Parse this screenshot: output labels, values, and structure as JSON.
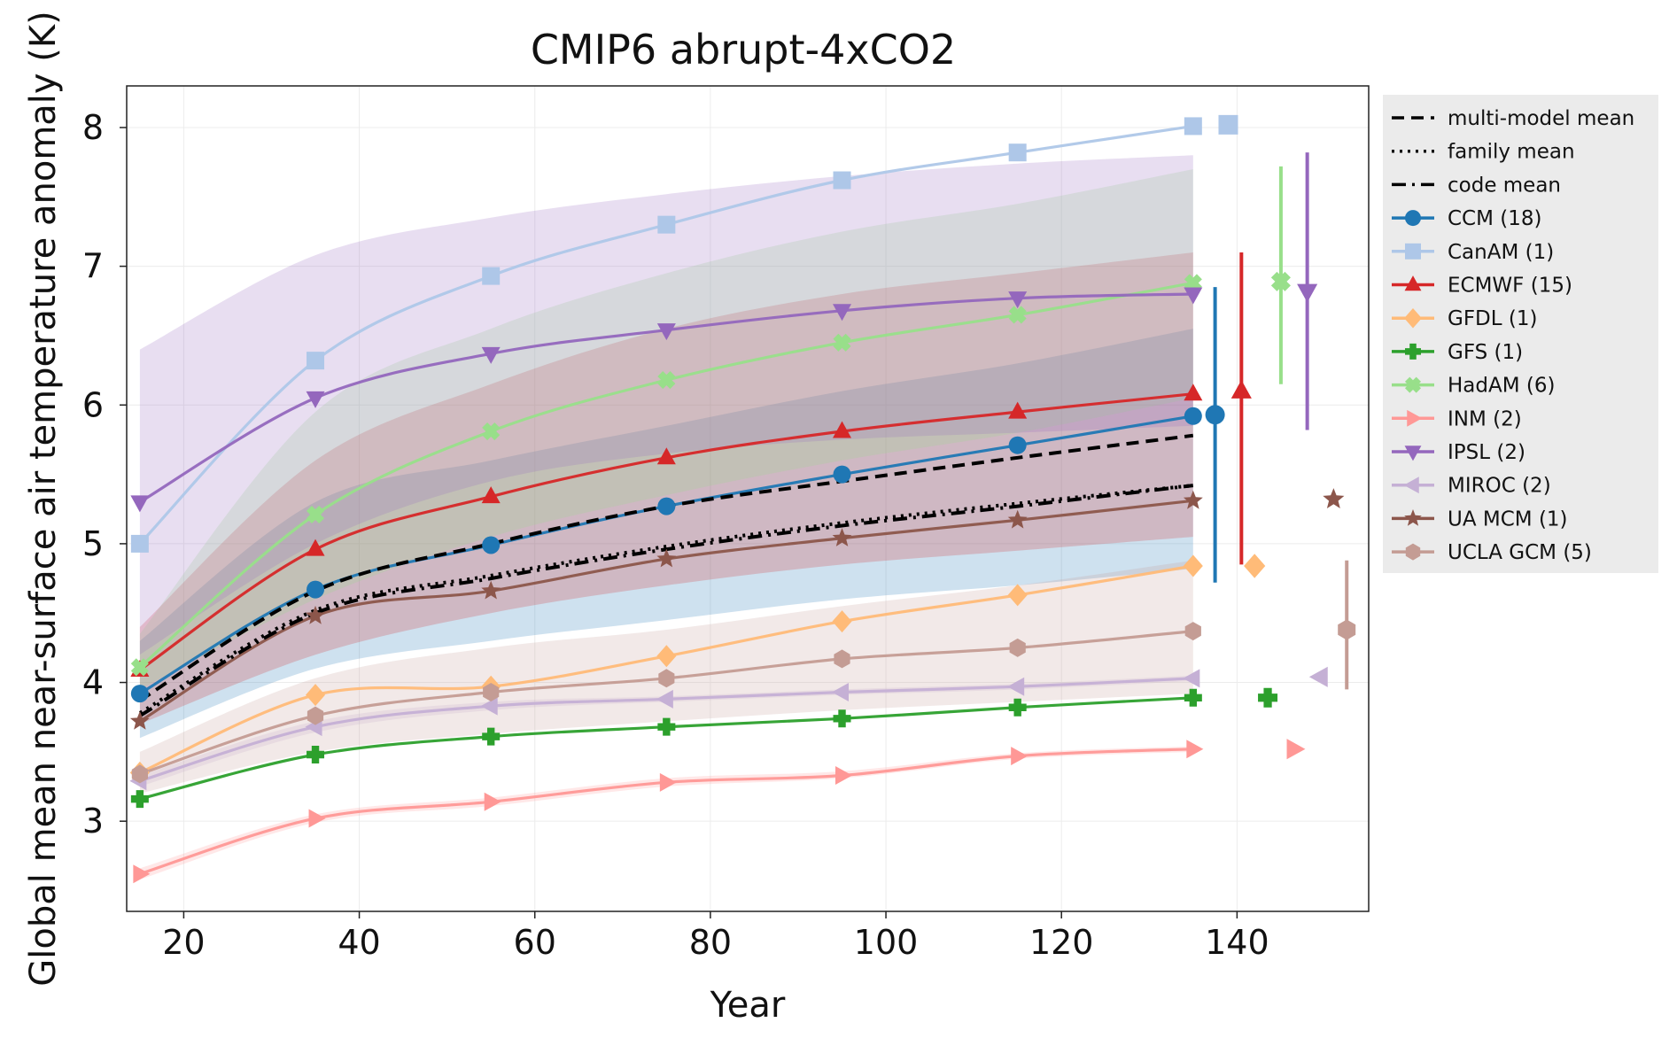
{
  "chart_data": {
    "type": "line",
    "title": "CMIP6 abrupt-4xCO2",
    "xlabel": "Year",
    "ylabel": "Global mean near-surface air temperature anomaly (K)",
    "xlim": [
      13.5,
      155
    ],
    "ylim": [
      2.35,
      8.3
    ],
    "xticks": [
      20,
      40,
      60,
      80,
      100,
      120,
      140
    ],
    "yticks": [
      3,
      4,
      5,
      6,
      7,
      8
    ],
    "grid": true,
    "legend_position": "right-outside-top",
    "x": [
      15,
      35,
      55,
      75,
      95,
      115,
      135
    ],
    "reference_lines": [
      {
        "name": "multi-model mean",
        "style": "dashed",
        "color": "#000000",
        "values": [
          3.87,
          4.66,
          5.0,
          5.27,
          5.45,
          5.62,
          5.78
        ]
      },
      {
        "name": "family mean",
        "style": "dotted",
        "color": "#000000",
        "values": [
          3.78,
          4.52,
          4.77,
          4.98,
          5.15,
          5.29,
          5.42
        ]
      },
      {
        "name": "code mean",
        "style": "dashdot",
        "color": "#000000",
        "values": [
          3.76,
          4.5,
          4.75,
          4.96,
          5.13,
          5.27,
          5.42
        ]
      }
    ],
    "series": [
      {
        "name": "CCM (18)",
        "color": "#1f77b4",
        "marker": "circle",
        "values": [
          3.92,
          4.67,
          4.99,
          5.27,
          5.5,
          5.71,
          5.92
        ],
        "band": {
          "lower": [
            3.6,
            4.1,
            4.3,
            4.45,
            4.6,
            4.7,
            4.82
          ],
          "upper": [
            4.3,
            5.3,
            5.6,
            5.85,
            6.1,
            6.3,
            6.55
          ]
        },
        "end_marker": {
          "x": 137.5,
          "value": 5.93,
          "low": 4.72,
          "high": 6.85
        }
      },
      {
        "name": "CanAM (1)",
        "color": "#aec7e8",
        "marker": "square",
        "values": [
          5.0,
          6.32,
          6.93,
          7.3,
          7.62,
          7.82,
          8.01
        ],
        "end_marker": {
          "x": 139,
          "value": 8.02
        }
      },
      {
        "name": "ECMWF (15)",
        "color": "#d62728",
        "marker": "triangle-up",
        "values": [
          4.09,
          4.96,
          5.34,
          5.62,
          5.81,
          5.95,
          6.08
        ],
        "band": {
          "lower": [
            3.7,
            4.2,
            4.5,
            4.7,
            4.85,
            4.95,
            5.05
          ],
          "upper": [
            4.4,
            5.6,
            6.15,
            6.55,
            6.8,
            6.95,
            7.1
          ]
        },
        "end_marker": {
          "x": 140.5,
          "value": 6.1,
          "low": 4.85,
          "high": 7.1
        }
      },
      {
        "name": "GFDL (1)",
        "color": "#ffbb78",
        "marker": "diamond",
        "values": [
          3.35,
          3.91,
          3.97,
          4.19,
          4.44,
          4.63,
          4.84
        ],
        "end_marker": {
          "x": 142,
          "value": 4.84
        }
      },
      {
        "name": "GFS (1)",
        "color": "#2ca02c",
        "marker": "plus",
        "values": [
          3.16,
          3.48,
          3.61,
          3.68,
          3.74,
          3.82,
          3.89
        ],
        "end_marker": {
          "x": 143.5,
          "value": 3.89
        }
      },
      {
        "name": "HadAM (6)",
        "color": "#98df8a",
        "marker": "x",
        "values": [
          4.11,
          5.21,
          5.81,
          6.18,
          6.45,
          6.65,
          6.88
        ],
        "band": {
          "lower": [
            3.95,
            4.6,
            5.05,
            5.35,
            5.6,
            5.8,
            6.05
          ],
          "upper": [
            4.35,
            5.95,
            6.55,
            6.95,
            7.25,
            7.45,
            7.7
          ]
        },
        "end_marker": {
          "x": 145,
          "value": 6.89,
          "low": 6.15,
          "high": 7.72
        }
      },
      {
        "name": "INM (2)",
        "color": "#ff9896",
        "marker": "triangle-right",
        "values": [
          2.62,
          3.02,
          3.14,
          3.28,
          3.33,
          3.47,
          3.52
        ],
        "band": {
          "lower": [
            2.58,
            2.99,
            3.11,
            3.25,
            3.31,
            3.45,
            3.5
          ],
          "upper": [
            2.66,
            3.05,
            3.17,
            3.31,
            3.36,
            3.49,
            3.54
          ]
        },
        "end_marker": {
          "x": 146.5,
          "value": 3.52
        }
      },
      {
        "name": "IPSL (2)",
        "color": "#9467bd",
        "marker": "triangle-down",
        "values": [
          5.3,
          6.05,
          6.37,
          6.54,
          6.68,
          6.77,
          6.8
        ],
        "band": {
          "lower": [
            4.2,
            5.0,
            5.45,
            5.65,
            5.75,
            5.8,
            5.85
          ],
          "upper": [
            6.4,
            7.08,
            7.35,
            7.52,
            7.65,
            7.74,
            7.8
          ]
        },
        "end_marker": {
          "x": 148,
          "value": 6.82,
          "low": 5.82,
          "high": 7.82
        }
      },
      {
        "name": "MIROC (2)",
        "color": "#c5b0d5",
        "marker": "triangle-left",
        "values": [
          3.29,
          3.68,
          3.83,
          3.88,
          3.93,
          3.97,
          4.03
        ],
        "band": {
          "lower": [
            3.25,
            3.64,
            3.8,
            3.86,
            3.91,
            3.95,
            4.01
          ],
          "upper": [
            3.33,
            3.72,
            3.86,
            3.9,
            3.95,
            3.99,
            4.05
          ]
        },
        "end_marker": {
          "x": 149.5,
          "value": 4.04
        }
      },
      {
        "name": "UA MCM (1)",
        "color": "#8c564b",
        "marker": "star",
        "values": [
          3.72,
          4.48,
          4.66,
          4.89,
          5.04,
          5.17,
          5.31
        ],
        "end_marker": {
          "x": 151,
          "value": 5.32
        }
      },
      {
        "name": "UCLA GCM (5)",
        "color": "#c49c94",
        "marker": "hexagon",
        "values": [
          3.34,
          3.76,
          3.93,
          4.03,
          4.17,
          4.25,
          4.37
        ],
        "band": {
          "lower": [
            3.2,
            3.5,
            3.63,
            3.72,
            3.8,
            3.86,
            3.92
          ],
          "upper": [
            3.5,
            4.03,
            4.25,
            4.38,
            4.55,
            4.7,
            4.88
          ]
        },
        "end_marker": {
          "x": 152.5,
          "value": 4.38,
          "low": 3.95,
          "high": 4.88
        }
      }
    ]
  }
}
